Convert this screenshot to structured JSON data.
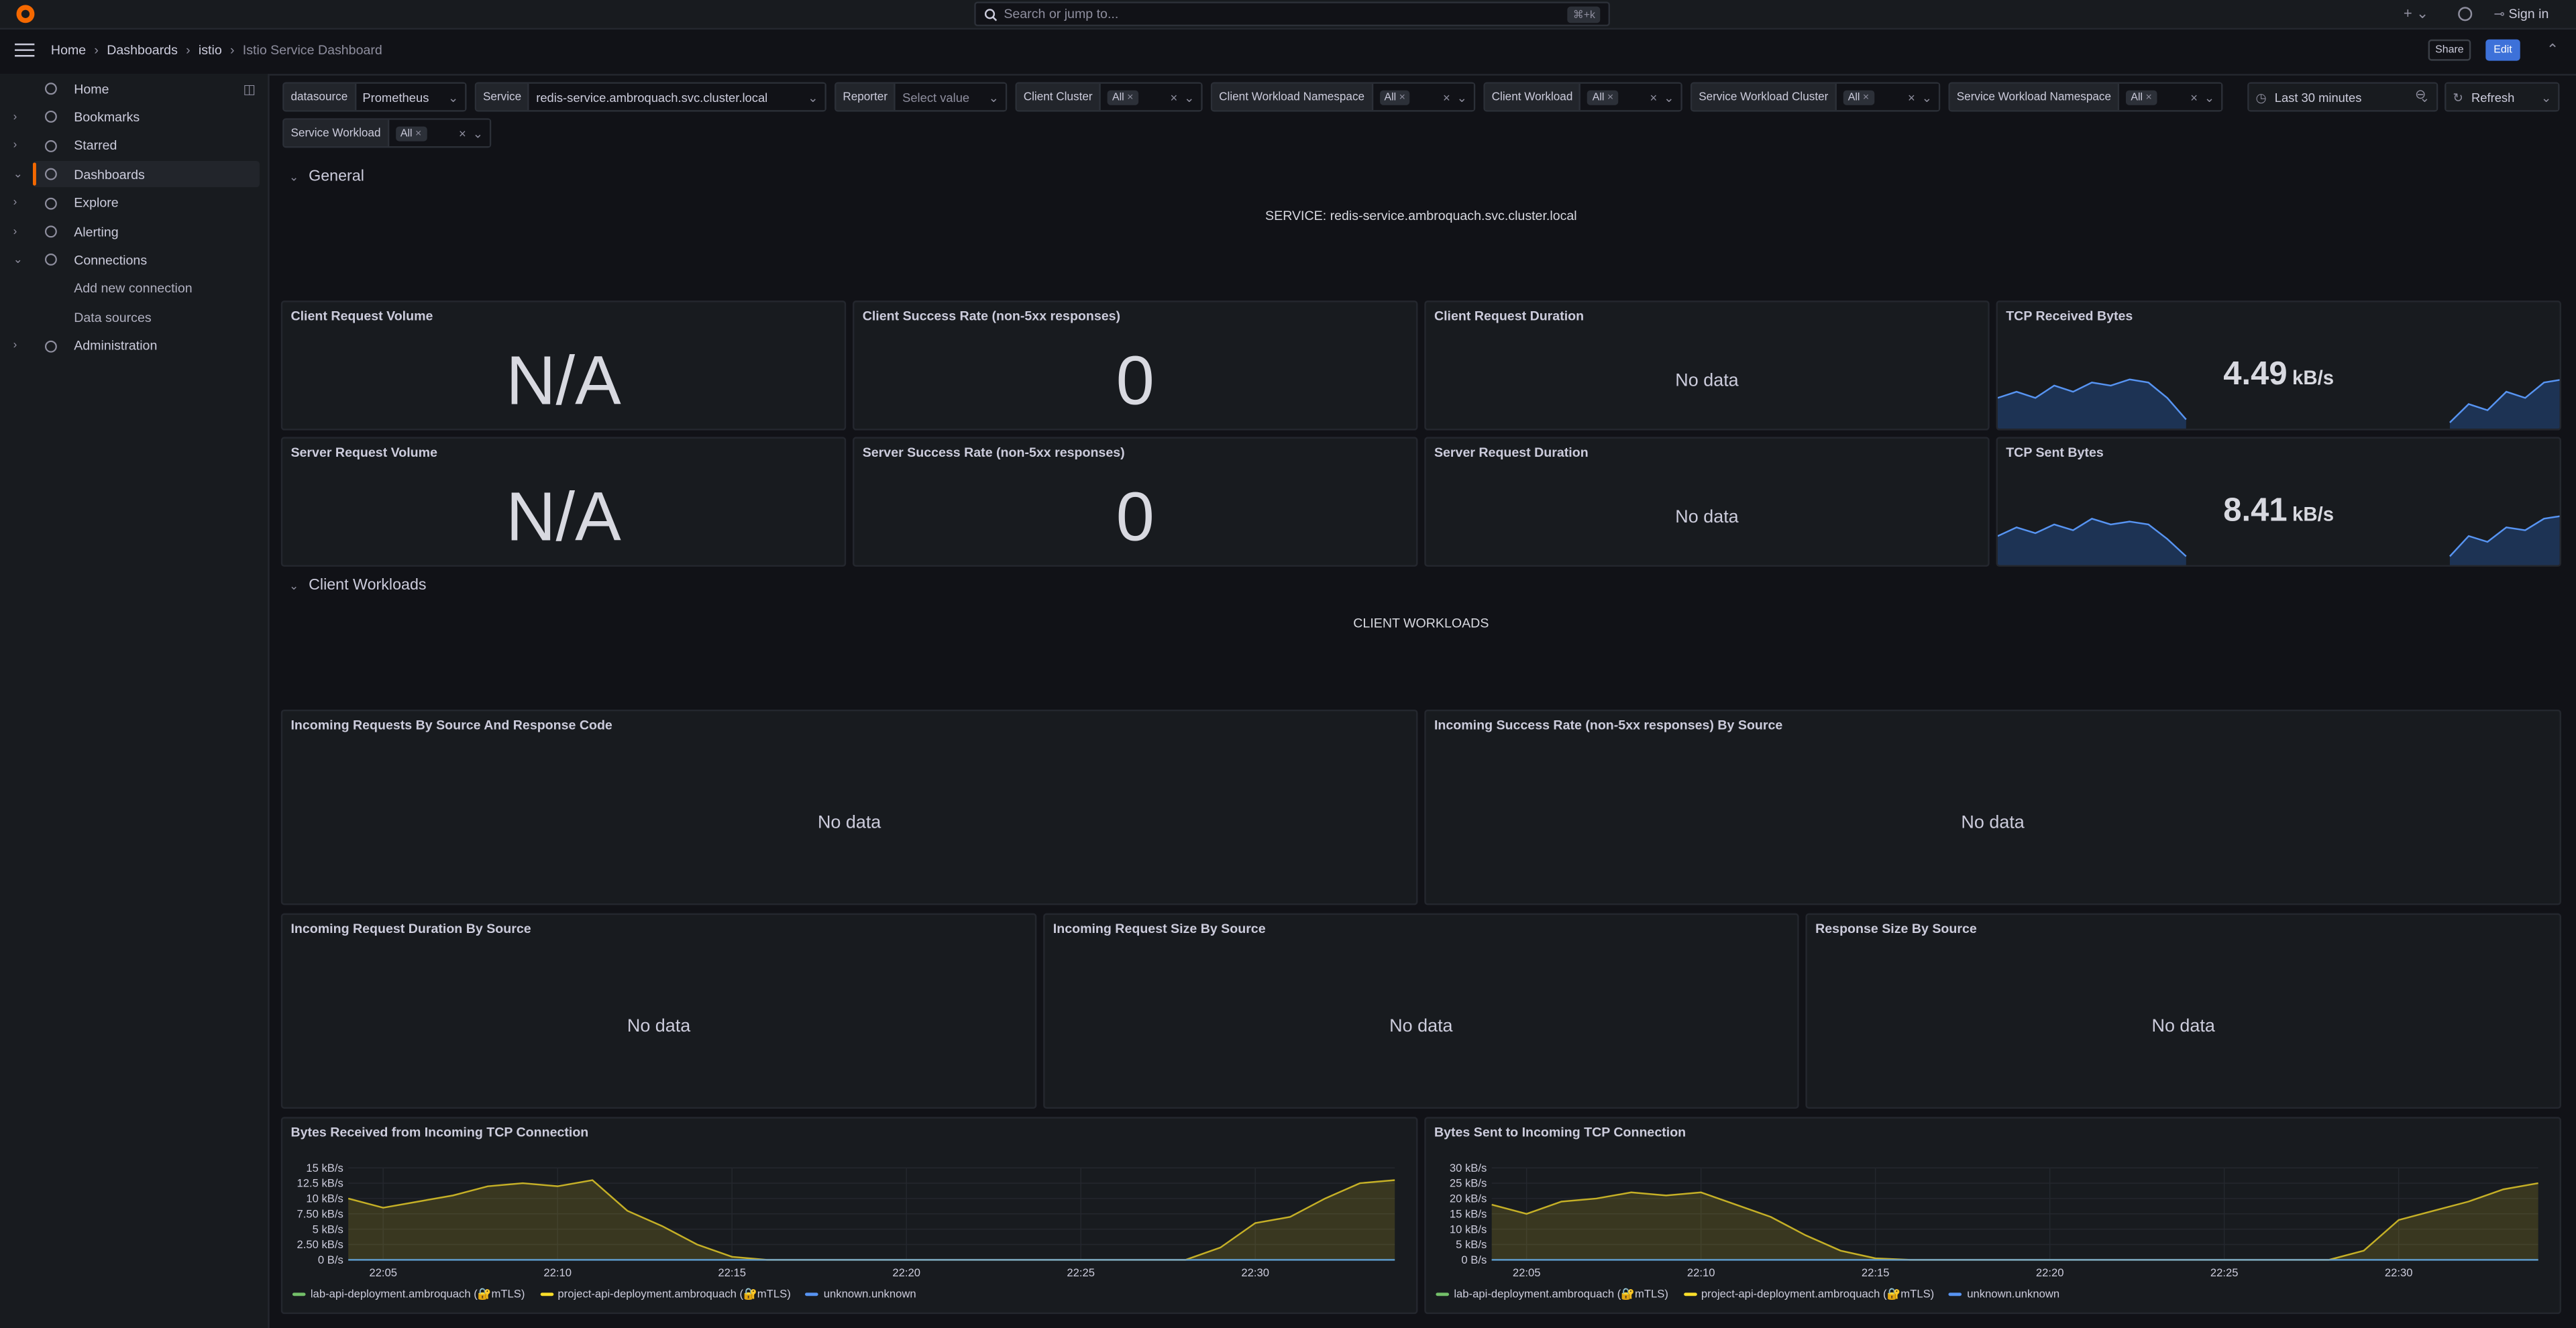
{
  "topbar": {
    "search": "Search or jump to...",
    "shortcut": "⌘+k",
    "sign_in": "Sign in"
  },
  "breadcrumb": [
    "Home",
    "Dashboards",
    "istio",
    "Istio Service Dashboard"
  ],
  "actions": {
    "share": "Share",
    "edit": "Edit"
  },
  "nav": [
    {
      "label": "Home"
    },
    {
      "label": "Bookmarks"
    },
    {
      "label": "Starred"
    },
    {
      "label": "Dashboards"
    },
    {
      "label": "Explore"
    },
    {
      "label": "Alerting"
    },
    {
      "label": "Connections",
      "children": [
        "Add new connection",
        "Data sources"
      ]
    },
    {
      "label": "Administration"
    }
  ],
  "active_nav": 3,
  "variables": [
    {
      "label": "datasource",
      "value": "Prometheus"
    },
    {
      "label": "Service",
      "value": "redis-service.ambroquach.svc.cluster.local"
    },
    {
      "label": "Reporter",
      "value": "Select value",
      "placeholder": true
    },
    {
      "label": "Client Cluster",
      "value": "All",
      "multi": true
    },
    {
      "label": "Client Workload Namespace",
      "value": "All",
      "multi": true
    },
    {
      "label": "Client Workload",
      "value": "All",
      "multi": true
    },
    {
      "label": "Service Workload Cluster",
      "value": "All",
      "multi": true
    },
    {
      "label": "Service Workload Namespace",
      "value": "All",
      "multi": true
    },
    {
      "label": "Service Workload",
      "value": "All",
      "multi": true
    }
  ],
  "time_range": "Last 30 minutes",
  "refresh": "Refresh",
  "rows": [
    {
      "title": "General",
      "text": "SERVICE: redis-service.ambroquach.svc.cluster.local"
    },
    {
      "title": "Client Workloads",
      "text": "CLIENT WORKLOADS"
    }
  ],
  "stat_panels": [
    {
      "title": "Client Request Volume",
      "value": "N/A"
    },
    {
      "title": "Client Success Rate (non-5xx responses)",
      "value": 0
    },
    {
      "title": "Client Request Duration",
      "value": "No data"
    },
    {
      "title": "TCP Received Bytes",
      "value": 4.49,
      "unit": "kB/s",
      "sparkline": [
        5,
        6,
        5,
        7,
        6,
        7.5,
        7,
        8,
        7.5,
        5,
        1.5,
        null,
        null,
        null,
        null,
        null,
        null,
        null,
        null,
        null,
        null,
        null,
        null,
        null,
        1,
        4,
        3,
        6,
        5,
        7.5,
        8
      ]
    },
    {
      "title": "Server Request Volume",
      "value": "N/A"
    },
    {
      "title": "Server Success Rate (non-5xx responses)",
      "value": 0
    },
    {
      "title": "Server Request Duration",
      "value": "No data"
    },
    {
      "title": "TCP Sent Bytes",
      "value": 8.41,
      "unit": "kB/s",
      "sparkline": [
        5,
        6.5,
        5.5,
        7,
        6,
        8,
        7,
        7.5,
        7,
        4.5,
        1.5,
        null,
        null,
        null,
        null,
        null,
        null,
        null,
        null,
        null,
        null,
        null,
        null,
        null,
        1.5,
        5,
        4,
        6.5,
        6,
        8,
        8.5
      ]
    }
  ],
  "graph_panels": [
    {
      "title": "Incoming Requests By Source And Response Code",
      "value": "No data"
    },
    {
      "title": "Incoming Success Rate (non-5xx responses) By Source",
      "value": "No data"
    },
    {
      "title": "Incoming Request Duration By Source",
      "value": "No data"
    },
    {
      "title": "Incoming Request Size By Source",
      "value": "No data"
    },
    {
      "title": "Response Size By Source",
      "value": "No data"
    }
  ],
  "timeseries": [
    {
      "title": "Bytes Received from Incoming TCP Connection",
      "x": [
        "22:04",
        "22:05",
        "22:06",
        "22:07",
        "22:08",
        "22:09",
        "22:10",
        "22:11",
        "22:12",
        "22:13",
        "22:14",
        "22:15",
        "22:16",
        "22:17",
        "22:18",
        "22:19",
        "22:20",
        "22:21",
        "22:22",
        "22:23",
        "22:24",
        "22:25",
        "22:26",
        "22:27",
        "22:28",
        "22:29",
        "22:30",
        "22:31",
        "22:32",
        "22:33",
        "22:34"
      ],
      "xticks": [
        "22:05",
        "22:10",
        "22:15",
        "22:20",
        "22:25",
        "22:30"
      ],
      "ylim": [
        0,
        15
      ],
      "yticks": [
        {
          "value": 0,
          "label": "0 B/s"
        },
        {
          "value": 2.5,
          "label": "2.50 kB/s"
        },
        {
          "value": 5,
          "label": "5 kB/s"
        },
        {
          "value": 7.5,
          "label": "7.50 kB/s"
        },
        {
          "value": 10,
          "label": "10 kB/s"
        },
        {
          "value": 12.5,
          "label": "12.5 kB/s"
        },
        {
          "value": 15,
          "label": "15 kB/s"
        }
      ],
      "series": [
        {
          "name": "lab-api-deployment.ambroquach (🔐mTLS)",
          "color": "#73bf69",
          "values": [
            0,
            0,
            0,
            0,
            0,
            0,
            0,
            0,
            0,
            0,
            0,
            0,
            0,
            0,
            0,
            0,
            0,
            0,
            0,
            0,
            0,
            0,
            0,
            0,
            0,
            0,
            0,
            0,
            0,
            0,
            0
          ]
        },
        {
          "name": "project-api-deployment.ambroquach (🔐mTLS)",
          "color": "#fade2a",
          "values": [
            10,
            8.5,
            9.5,
            10.5,
            12,
            12.5,
            12,
            13,
            8,
            5.5,
            2.5,
            0.5,
            0,
            0,
            0,
            0,
            0,
            0,
            0,
            0,
            0,
            0,
            0,
            0,
            0,
            2,
            6,
            7,
            10,
            12.5,
            13
          ]
        },
        {
          "name": "unknown.unknown",
          "color": "#5794f2",
          "values": [
            0,
            0,
            0,
            0,
            0,
            0,
            0,
            0,
            0,
            0,
            0,
            0,
            0,
            0,
            0,
            0,
            0,
            0,
            0,
            0,
            0,
            0,
            0,
            0,
            0,
            0,
            0,
            0,
            0,
            0,
            0
          ]
        }
      ]
    },
    {
      "title": "Bytes Sent to Incoming TCP Connection",
      "x": [
        "22:04",
        "22:05",
        "22:06",
        "22:07",
        "22:08",
        "22:09",
        "22:10",
        "22:11",
        "22:12",
        "22:13",
        "22:14",
        "22:15",
        "22:16",
        "22:17",
        "22:18",
        "22:19",
        "22:20",
        "22:21",
        "22:22",
        "22:23",
        "22:24",
        "22:25",
        "22:26",
        "22:27",
        "22:28",
        "22:29",
        "22:30",
        "22:31",
        "22:32",
        "22:33",
        "22:34"
      ],
      "xticks": [
        "22:05",
        "22:10",
        "22:15",
        "22:20",
        "22:25",
        "22:30"
      ],
      "ylim": [
        0,
        30
      ],
      "yticks": [
        {
          "value": 0,
          "label": "0 B/s"
        },
        {
          "value": 5,
          "label": "5 kB/s"
        },
        {
          "value": 10,
          "label": "10 kB/s"
        },
        {
          "value": 15,
          "label": "15 kB/s"
        },
        {
          "value": 20,
          "label": "20 kB/s"
        },
        {
          "value": 25,
          "label": "25 kB/s"
        },
        {
          "value": 30,
          "label": "30 kB/s"
        }
      ],
      "series": [
        {
          "name": "lab-api-deployment.ambroquach (🔐mTLS)",
          "color": "#73bf69",
          "values": [
            0,
            0,
            0,
            0,
            0,
            0,
            0,
            0,
            0,
            0,
            0,
            0,
            0,
            0,
            0,
            0,
            0,
            0,
            0,
            0,
            0,
            0,
            0,
            0,
            0,
            0,
            0,
            0,
            0,
            0,
            0
          ]
        },
        {
          "name": "project-api-deployment.ambroquach (🔐mTLS)",
          "color": "#fade2a",
          "values": [
            18,
            15,
            19,
            20,
            22,
            21,
            22,
            18,
            14,
            8,
            3,
            0.5,
            0,
            0,
            0,
            0,
            0,
            0,
            0,
            0,
            0,
            0,
            0,
            0,
            0,
            3,
            13,
            16,
            19,
            23,
            25
          ]
        },
        {
          "name": "unknown.unknown",
          "color": "#5794f2",
          "values": [
            0,
            0,
            0,
            0,
            0,
            0,
            0,
            0,
            0,
            0,
            0,
            0,
            0,
            0,
            0,
            0,
            0,
            0,
            0,
            0,
            0,
            0,
            0,
            0,
            0,
            0,
            0,
            0,
            0,
            0,
            0
          ]
        }
      ]
    }
  ]
}
